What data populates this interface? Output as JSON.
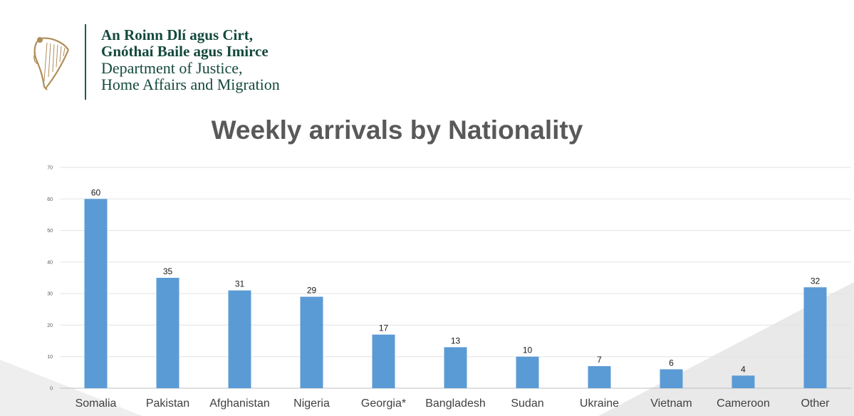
{
  "header": {
    "dept_line1": "An Roinn Dlí agus Cirt,",
    "dept_line2": "Gnóthaí Baile agus Imirce",
    "dept_line3": "Department of Justice,",
    "dept_line4": "Home Affairs and Migration",
    "logo_icon": "harp-icon",
    "brand_color": "#14493d",
    "harp_color": "#b08d57"
  },
  "chart_data": {
    "type": "bar",
    "title": "Weekly arrivals by Nationality",
    "categories": [
      "Somalia",
      "Pakistan",
      "Afghanistan",
      "Nigeria",
      "Georgia*",
      "Bangladesh",
      "Sudan",
      "Ukraine",
      "Vietnam",
      "Cameroon",
      "Other"
    ],
    "values": [
      60,
      35,
      31,
      29,
      17,
      13,
      10,
      7,
      6,
      4,
      32
    ],
    "ylim": [
      0,
      70
    ],
    "yticks": [
      0,
      10,
      20,
      30,
      40,
      50,
      60,
      70
    ],
    "xlabel": "",
    "ylabel": "",
    "grid": true,
    "bar_color": "#5b9bd5"
  }
}
